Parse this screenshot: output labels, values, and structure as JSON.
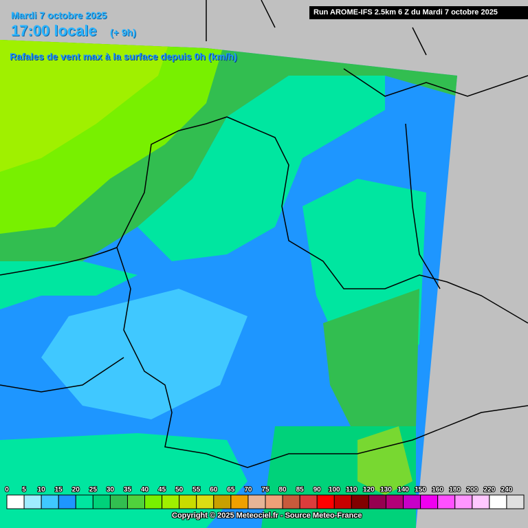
{
  "header": {
    "date": "Mardi 7 octobre 2025",
    "time": "17:00 locale",
    "offset": "(+ 9h)",
    "parameter": "Rafales de vent max à la surface depuis 0h (km/h)",
    "run": "Run AROME-IFS 2.5km 6 Z du Mardi 7 octobre 2025"
  },
  "legend": {
    "items": [
      {
        "label": "0",
        "color": "#ffffff"
      },
      {
        "label": "5",
        "color": "#a0ecff"
      },
      {
        "label": "10",
        "color": "#40c8ff"
      },
      {
        "label": "15",
        "color": "#1e96ff"
      },
      {
        "label": "20",
        "color": "#00e6a0"
      },
      {
        "label": "25",
        "color": "#00d27a"
      },
      {
        "label": "30",
        "color": "#32be50"
      },
      {
        "label": "35",
        "color": "#50d23c"
      },
      {
        "label": "40",
        "color": "#78f000"
      },
      {
        "label": "45",
        "color": "#a0f000"
      },
      {
        "label": "50",
        "color": "#c8dc00"
      },
      {
        "label": "55",
        "color": "#dcdc14"
      },
      {
        "label": "60",
        "color": "#c8a000"
      },
      {
        "label": "65",
        "color": "#f0a000"
      },
      {
        "label": "70",
        "color": "#e6b496"
      },
      {
        "label": "75",
        "color": "#f0a078"
      },
      {
        "label": "80",
        "color": "#c85a3c"
      },
      {
        "label": "85",
        "color": "#dc3c3c"
      },
      {
        "label": "90",
        "color": "#ff0000"
      },
      {
        "label": "100",
        "color": "#c80000"
      },
      {
        "label": "110",
        "color": "#820000"
      },
      {
        "label": "120",
        "color": "#960050"
      },
      {
        "label": "130",
        "color": "#b40078"
      },
      {
        "label": "140",
        "color": "#c800c8"
      },
      {
        "label": "150",
        "color": "#f000f0"
      },
      {
        "label": "160",
        "color": "#ff50ff"
      },
      {
        "label": "180",
        "color": "#ff96ff"
      },
      {
        "label": "200",
        "color": "#ffc8ff"
      },
      {
        "label": "220",
        "color": "#ffffff"
      },
      {
        "label": "240",
        "color": "#e0e0e0"
      }
    ]
  },
  "footer": {
    "copyright": "Copyright © 2025 Meteociel.fr - Source Meteo-France"
  }
}
